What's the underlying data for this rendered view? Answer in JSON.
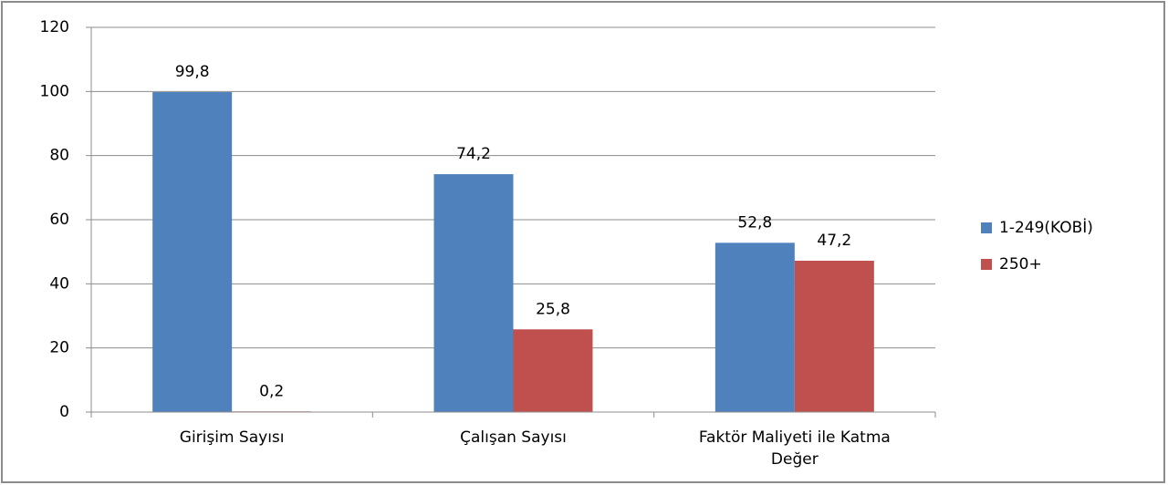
{
  "chart_data": {
    "type": "bar",
    "categories": [
      "Girişim Sayısı",
      "Çalışan Sayısı",
      "Faktör Maliyeti ile Katma Değer"
    ],
    "series": [
      {
        "name": "1-249(KOBİ)",
        "color": "#4f81bd",
        "values": [
          99.8,
          74.2,
          52.8
        ],
        "value_labels": [
          "99,8",
          "74,2",
          "52,8"
        ]
      },
      {
        "name": "250+",
        "color": "#c0504d",
        "values": [
          0.2,
          25.8,
          47.2
        ],
        "value_labels": [
          "0,2",
          "25,8",
          "47,2"
        ]
      }
    ],
    "ylim": [
      0,
      120
    ],
    "yticks": [
      0,
      20,
      40,
      60,
      80,
      100,
      120
    ],
    "grid": true,
    "legend": "right"
  }
}
